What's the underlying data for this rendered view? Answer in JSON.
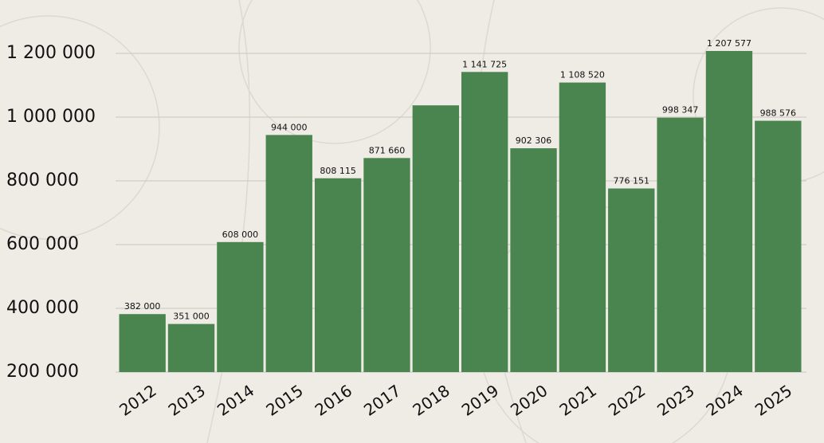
{
  "chart_data": {
    "type": "bar",
    "categories": [
      "2012",
      "2013",
      "2014",
      "2015",
      "2016",
      "2017",
      "2018",
      "2019",
      "2020",
      "2021",
      "2022",
      "2023",
      "2024",
      "2025"
    ],
    "values": [
      382000,
      351000,
      608000,
      944000,
      808115,
      871660,
      1037000,
      1141725,
      902306,
      1108520,
      776151,
      998347,
      1207577,
      988576
    ],
    "value_labels": [
      "382 000",
      "351 000",
      "608 000",
      "944 000",
      "808 115",
      "871 660",
      null,
      "1 141 725",
      "902 306",
      "1 108 520",
      "776 151",
      "998 347",
      "1 207 577",
      "988 576"
    ],
    "color": "#4a8550",
    "ylim": [
      200000,
      1200000
    ],
    "yticks": [
      {
        "value": 200000,
        "label": "200 000"
      },
      {
        "value": 400000,
        "label": "400 000"
      },
      {
        "value": 600000,
        "label": "600 000"
      },
      {
        "value": 800000,
        "label": "800 000"
      },
      {
        "value": 1000000,
        "label": "1 000 000"
      },
      {
        "value": 1200000,
        "label": "1 200 000"
      }
    ],
    "grid": true
  }
}
